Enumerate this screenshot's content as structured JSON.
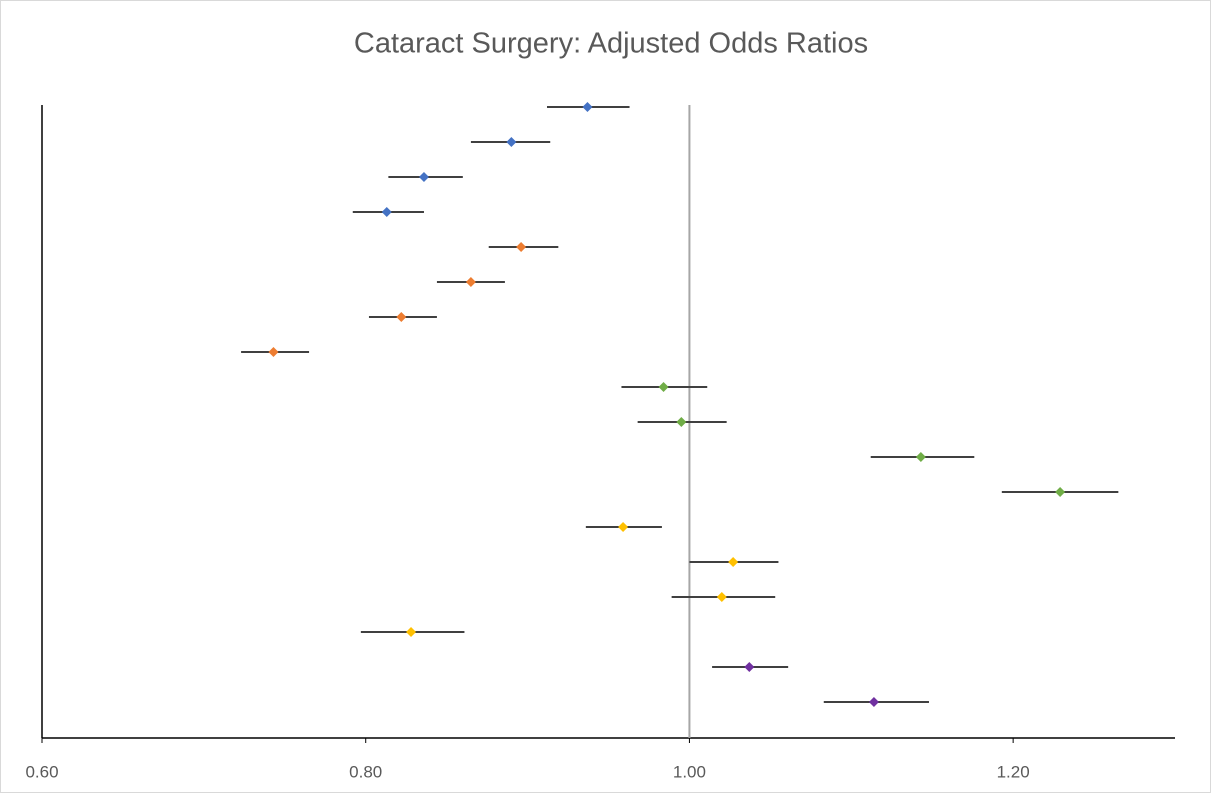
{
  "chart_data": {
    "type": "forest",
    "title": "Cataract Surgery: Adjusted Odds Ratios",
    "xlim": [
      0.6,
      1.3
    ],
    "xticks": [
      {
        "value": 0.6,
        "label": "0.60"
      },
      {
        "value": 0.8,
        "label": "0.80"
      },
      {
        "value": 1.0,
        "label": "1.00"
      },
      {
        "value": 1.2,
        "label": "1.20"
      }
    ],
    "reference_line": 1,
    "series": [
      {
        "color": "#4472c4",
        "values": [
          0.937,
          0.89,
          0.836,
          0.813
        ],
        "lower": [
          0.912,
          0.865,
          0.814,
          0.792
        ],
        "upper": [
          0.963,
          0.914,
          0.86,
          0.836
        ]
      },
      {
        "color": "#ed7d31",
        "values": [
          0.896,
          0.865,
          0.822,
          0.743
        ],
        "lower": [
          0.876,
          0.844,
          0.802,
          0.723
        ],
        "upper": [
          0.919,
          0.886,
          0.844,
          0.765
        ]
      },
      {
        "color": "#70ad47",
        "values": [
          0.984,
          0.995,
          1.143,
          1.229
        ],
        "lower": [
          0.958,
          0.968,
          1.112,
          1.193
        ],
        "upper": [
          1.011,
          1.023,
          1.176,
          1.265
        ]
      },
      {
        "color": "#ffc000",
        "values": [
          0.959,
          1.027,
          1.02,
          0.828
        ],
        "lower": [
          0.936,
          1.0,
          0.989,
          0.797
        ],
        "upper": [
          0.983,
          1.055,
          1.053,
          0.861
        ]
      },
      {
        "color": "#7030a0",
        "values": [
          1.037,
          1.114
        ],
        "lower": [
          1.014,
          1.083
        ],
        "upper": [
          1.061,
          1.148
        ]
      }
    ]
  }
}
